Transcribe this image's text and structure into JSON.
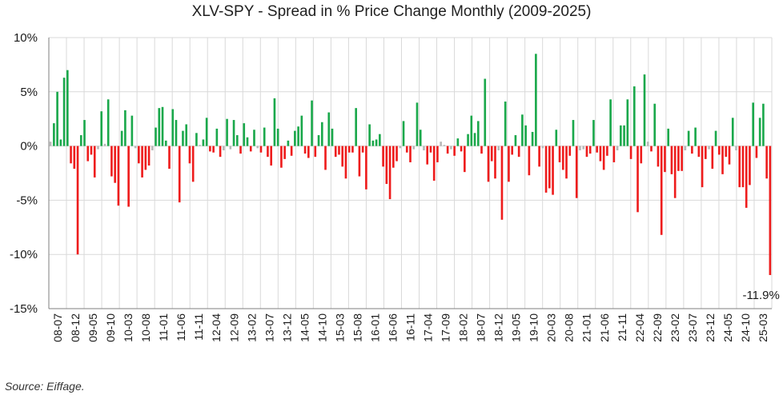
{
  "chart_data": {
    "type": "bar",
    "title": "XLV-SPY - Spread in % Price Change Monthly (2009-2025)",
    "source": "Source: Eiffage.",
    "ylim": [
      -15,
      10
    ],
    "yticks": [
      10,
      5,
      0,
      -5,
      -10,
      -15
    ],
    "ytick_labels": [
      "10%",
      "5%",
      "0%",
      "-5%",
      "-10%",
      "-15%"
    ],
    "grid": true,
    "colors": {
      "positive": "#1aa84b",
      "negative": "#ee1c1c",
      "neutral": "#b8b8b8",
      "grid": "#d9d9d9"
    },
    "neutral_threshold": 0.45,
    "xtick_labels": [
      "08-07",
      "08-12",
      "09-05",
      "09-10",
      "10-03",
      "10-08",
      "11-01",
      "11-06",
      "11-11",
      "12-04",
      "12-09",
      "13-02",
      "13-07",
      "13-12",
      "14-05",
      "14-10",
      "15-03",
      "15-08",
      "16-01",
      "16-06",
      "16-11",
      "17-04",
      "17-09",
      "18-02",
      "18-07",
      "18-12",
      "19-05",
      "19-10",
      "20-03",
      "20-08",
      "21-01",
      "21-06",
      "21-11",
      "22-04",
      "22-09",
      "23-02",
      "23-07",
      "23-12",
      "24-05",
      "24-10",
      "25-03"
    ],
    "annotation": "-11.9%",
    "values": [
      0.4,
      2.1,
      5.0,
      0.6,
      6.3,
      7.0,
      -1.6,
      -2.1,
      -10.0,
      1.0,
      2.4,
      -1.4,
      -0.8,
      -2.9,
      -0.3,
      3.2,
      0.2,
      4.3,
      -2.8,
      -3.4,
      -5.5,
      1.4,
      3.3,
      -5.6,
      2.8,
      -0.2,
      -1.6,
      -2.9,
      -2.2,
      -1.8,
      -0.4,
      1.7,
      3.5,
      3.6,
      0.5,
      -2.1,
      3.4,
      2.4,
      -5.2,
      1.4,
      2.0,
      -1.6,
      -3.3,
      1.2,
      0.1,
      0.6,
      2.6,
      -0.5,
      -0.6,
      1.6,
      -1.0,
      -0.4,
      2.5,
      -0.3,
      2.4,
      1.0,
      -0.7,
      2.1,
      0.8,
      -0.5,
      1.5,
      -0.2,
      -0.6,
      1.7,
      -1.0,
      -1.8,
      4.4,
      1.6,
      -2.0,
      -1.2,
      0.5,
      -0.9,
      1.4,
      1.8,
      2.8,
      -0.7,
      -1.1,
      4.2,
      -1.0,
      1.0,
      2.2,
      -2.2,
      3.1,
      1.6,
      -1.0,
      -0.8,
      -1.9,
      -3.0,
      -0.6,
      -0.6,
      3.5,
      -2.8,
      -0.6,
      -4.0,
      2.0,
      0.5,
      0.6,
      1.1,
      -1.9,
      -3.5,
      -4.9,
      -2.0,
      -1.4,
      -0.2,
      2.3,
      -0.6,
      -1.5,
      -0.3,
      4.0,
      1.5,
      -0.4,
      -1.7,
      -0.6,
      -3.2,
      -1.5,
      0.4,
      0.1,
      -0.7,
      -0.3,
      -0.9,
      0.7,
      -0.5,
      -2.4,
      1.1,
      2.8,
      1.2,
      2.3,
      -0.7,
      6.2,
      -3.3,
      -1.4,
      -3.0,
      -0.4,
      -6.8,
      4.1,
      -3.3,
      -0.8,
      1.0,
      -1.0,
      2.9,
      1.9,
      -2.7,
      1.3,
      8.5,
      -1.9,
      -0.2,
      -4.3,
      -3.9,
      -4.5,
      1.5,
      -1.5,
      -2.2,
      -3.0,
      -0.9,
      2.4,
      -4.8,
      -0.4,
      -0.3,
      -1.0,
      -0.7,
      2.4,
      -0.6,
      -1.4,
      -2.2,
      -0.9,
      4.3,
      -1.5,
      -0.4,
      1.9,
      1.9,
      4.3,
      -1.2,
      5.5,
      -6.1,
      -1.6,
      6.6,
      0.4,
      -0.5,
      3.9,
      -1.9,
      -8.2,
      -2.4,
      1.6,
      -2.6,
      -4.8,
      -2.3,
      -2.3,
      -0.4,
      1.4,
      -0.7,
      1.7,
      -1.0,
      -3.8,
      -1.2,
      -0.3,
      -2.1,
      1.4,
      -0.8,
      -2.6,
      -1.0,
      -1.7,
      2.6,
      -0.4,
      -3.8,
      -3.8,
      -5.7,
      -3.6,
      4.0,
      -1.1,
      2.6,
      3.9,
      -3.0,
      -11.9
    ]
  }
}
